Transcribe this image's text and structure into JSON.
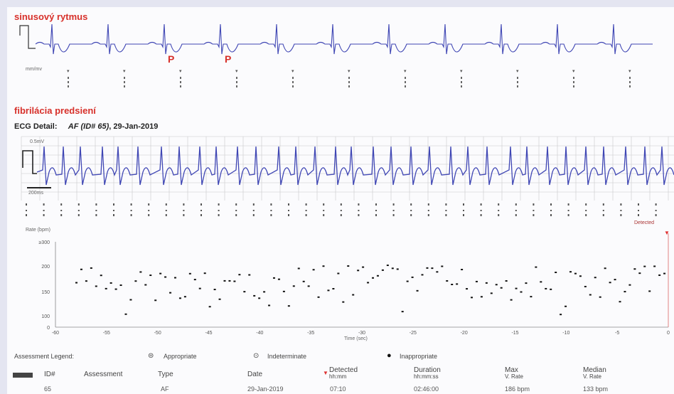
{
  "sinus_label": "sinusový rytmus",
  "p_label_1": "P",
  "p_label_2": "P",
  "scale_label_1": "mm/mv",
  "af_label": "fibrilácia predsiení",
  "ecg_detail": {
    "prefix": "ECG Detail:",
    "episode": "AF (ID# 65)",
    "date": ", 29-Jan-2019"
  },
  "scale_label_2": "0.5mV",
  "scale_label_3": "200ms",
  "rate_chart": {
    "ylabel": "Rate (bpm)",
    "xlabel": "Time (sec)",
    "detected_label": "Detected",
    "yticks": [
      "≥300",
      "200",
      "150",
      "100",
      "0"
    ],
    "xticks": [
      "-60",
      "-55",
      "-50",
      "-45",
      "-40",
      "-35",
      "-30",
      "-25",
      "-20",
      "-15",
      "-10",
      "-5",
      "0"
    ]
  },
  "legend": {
    "title": "Assessment Legend:",
    "appropriate": "Appropriate",
    "indeterminate": "Indeterminate",
    "inappropriate": "Inappropriate"
  },
  "table": {
    "headers": {
      "id": "ID#",
      "assessment": "Assessment",
      "type": "Type",
      "date": "Date",
      "detected": "Detected",
      "detected_sub": "hh:mm",
      "duration": "Duration",
      "duration_sub": "hh:mm:ss",
      "max": "Max",
      "max_sub": "V. Rate",
      "median": "Median",
      "median_sub": "V. Rate"
    },
    "row": {
      "id": "65",
      "assessment": "",
      "type": "AF",
      "date": "29-Jan-2019",
      "detected": "07:10",
      "duration": "02:46:00",
      "max": "186 bpm",
      "median": "133 bpm"
    }
  },
  "colors": {
    "ecg_trace": "#3f46b4",
    "title_red": "#d7302a",
    "grid": "#c9c9cc",
    "dot": "#111111",
    "marker": "#e03030"
  }
}
